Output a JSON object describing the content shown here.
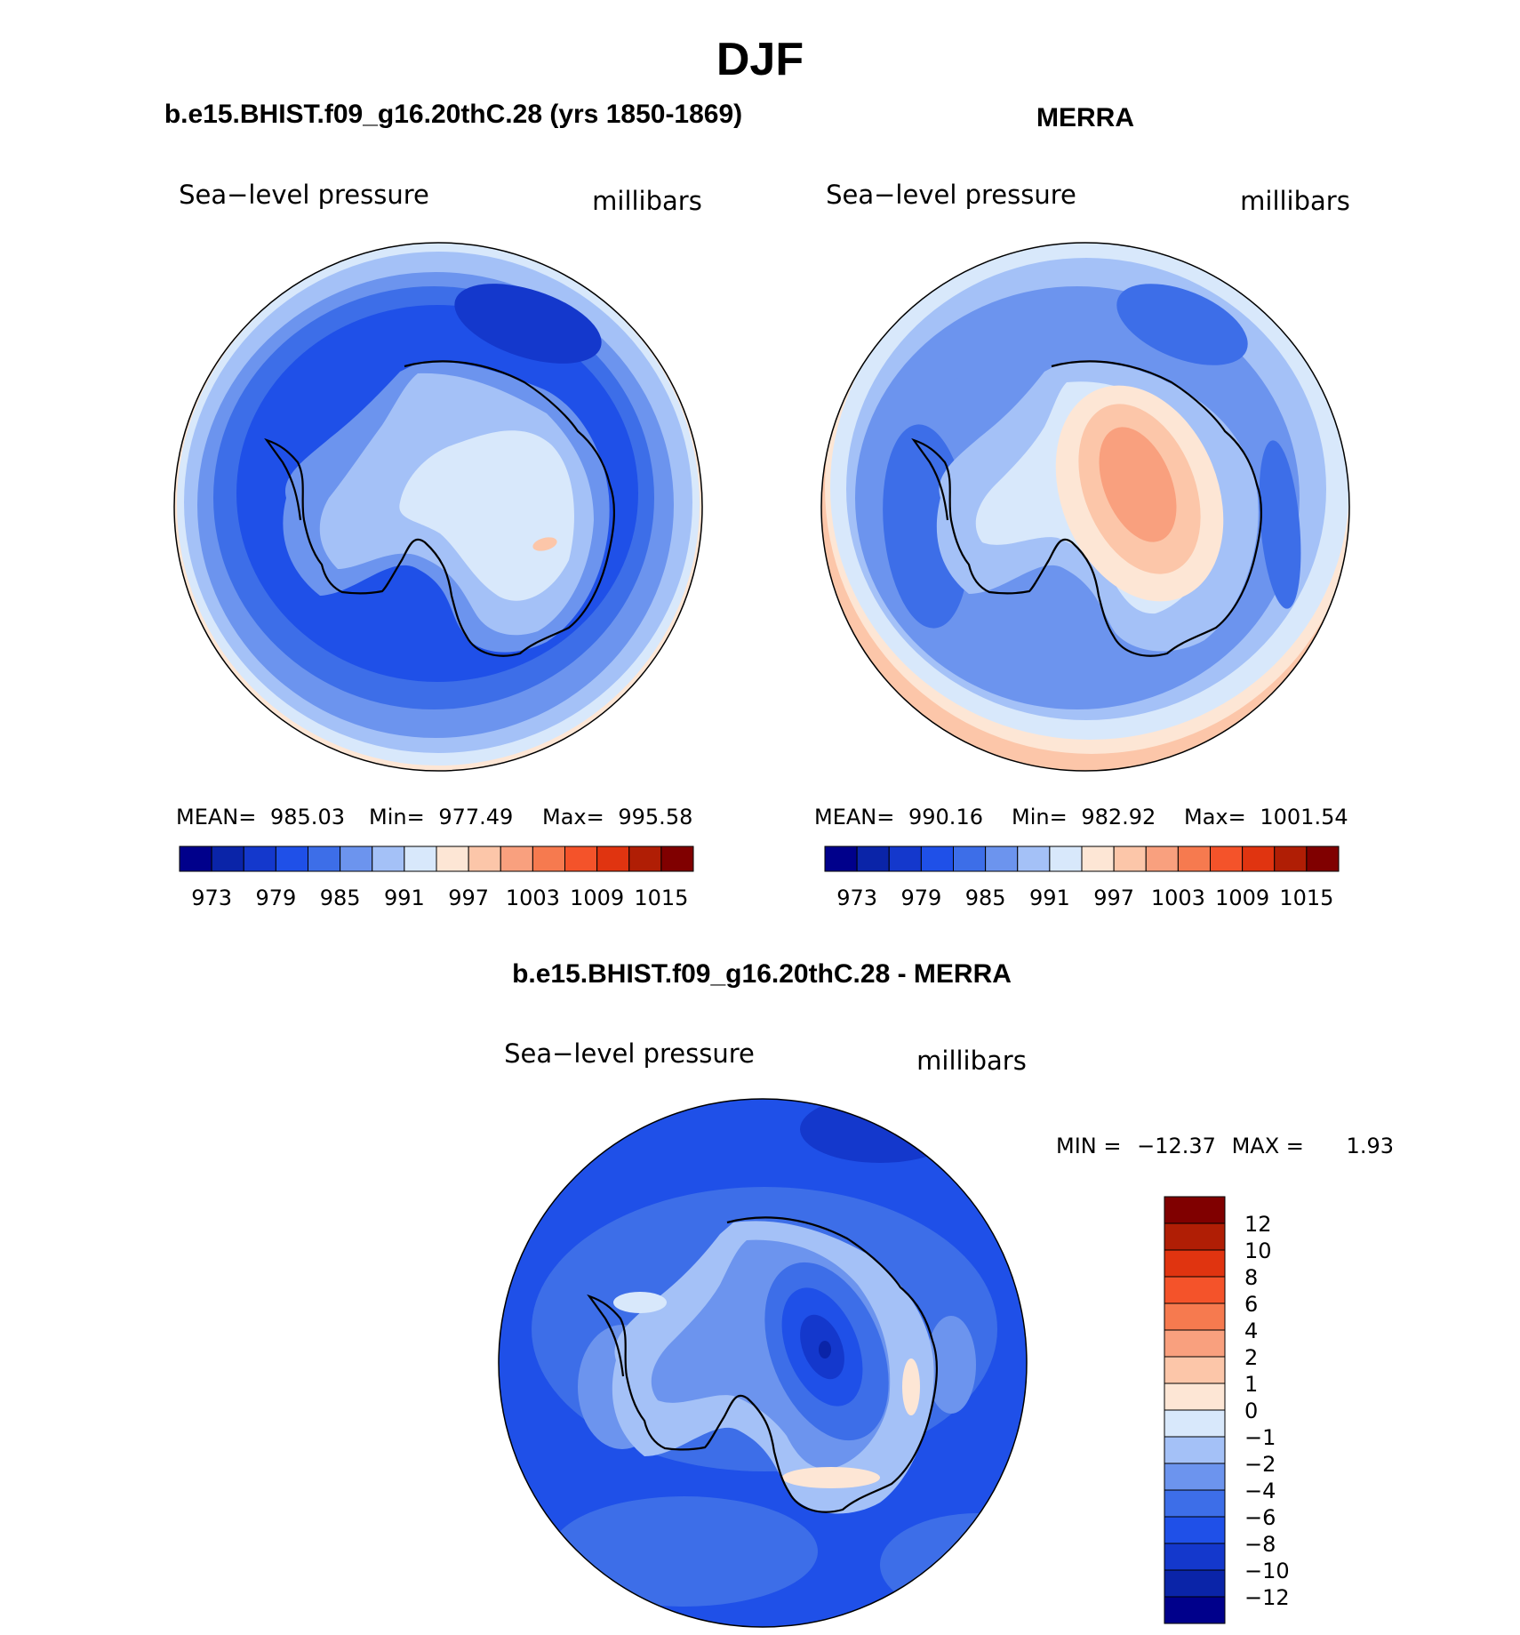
{
  "figure": {
    "title": "DJF"
  },
  "chart_data": [
    {
      "type": "heatmap",
      "projection": "south-polar-stereographic",
      "title": "b.e15.BHIST.f09_g16.20thC.28 (yrs 1850-1869)",
      "variable": "Sea−level pressure",
      "units": "millibars",
      "stats": {
        "mean_label": "MEAN=",
        "mean": "985.03",
        "min_label": "Min=",
        "min": "977.49",
        "max_label": "Max=",
        "max": "995.58"
      },
      "colorbar": {
        "orientation": "horizontal",
        "colors": [
          "#00008b",
          "#0a24a8",
          "#1438cc",
          "#1f50e8",
          "#3d6ee8",
          "#6c94ee",
          "#a4c1f7",
          "#d8e8fb",
          "#fde6d5",
          "#fcc6a9",
          "#f9a07e",
          "#f67a4f",
          "#f4532a",
          "#e03410",
          "#b01e05",
          "#800000"
        ],
        "tick_labels": [
          "973",
          "979",
          "985",
          "991",
          "997",
          "1003",
          "1009",
          "1015"
        ]
      }
    },
    {
      "type": "heatmap",
      "projection": "south-polar-stereographic",
      "title": "MERRA",
      "variable": "Sea−level pressure",
      "units": "millibars",
      "stats": {
        "mean_label": "MEAN=",
        "mean": "990.16",
        "min_label": "Min=",
        "min": "982.92",
        "max_label": "Max=",
        "max": "1001.54"
      },
      "colorbar": {
        "orientation": "horizontal",
        "colors": [
          "#00008b",
          "#0a24a8",
          "#1438cc",
          "#1f50e8",
          "#3d6ee8",
          "#6c94ee",
          "#a4c1f7",
          "#d8e8fb",
          "#fde6d5",
          "#fcc6a9",
          "#f9a07e",
          "#f67a4f",
          "#f4532a",
          "#e03410",
          "#b01e05",
          "#800000"
        ],
        "tick_labels": [
          "973",
          "979",
          "985",
          "991",
          "997",
          "1003",
          "1009",
          "1015"
        ]
      }
    },
    {
      "type": "heatmap",
      "projection": "south-polar-stereographic",
      "title": "b.e15.BHIST.f09_g16.20thC.28 - MERRA",
      "variable": "Sea−level pressure",
      "units": "millibars",
      "stats": {
        "min_label": "MIN =",
        "min": "−12.37",
        "max_label": "MAX =",
        "max": "1.93"
      },
      "colorbar": {
        "orientation": "vertical",
        "colors": [
          "#800000",
          "#b01e05",
          "#e03410",
          "#f4532a",
          "#f67a4f",
          "#f9a07e",
          "#fcc6a9",
          "#fde6d5",
          "#d8e8fb",
          "#a4c1f7",
          "#6c94ee",
          "#3d6ee8",
          "#1f50e8",
          "#1438cc",
          "#0a24a8",
          "#00008b"
        ],
        "tick_labels": [
          "12",
          "10",
          "8",
          "6",
          "4",
          "2",
          "1",
          "0",
          "−1",
          "−2",
          "−4",
          "−6",
          "−8",
          "−10",
          "−12"
        ]
      }
    }
  ]
}
